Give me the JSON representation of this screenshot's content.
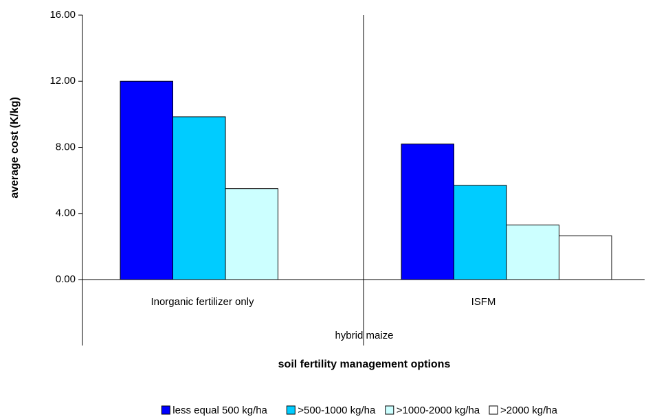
{
  "chart_data": {
    "type": "bar",
    "categories": [
      "Inorganic fertilizer only",
      "ISFM"
    ],
    "group_label": "hybrid maize",
    "x_label": "soil fertility management options",
    "y_label": "average cost (K/kg)",
    "series": [
      {
        "name": "less equal 500 kg/ha",
        "color": "#0000ff",
        "values": [
          12.0,
          8.2
        ]
      },
      {
        "name": ">500-1000 kg/ha",
        "color": "#00ccff",
        "values": [
          9.85,
          5.7
        ]
      },
      {
        "name": ">1000-2000 kg/ha",
        "color": "#ccffff",
        "values": [
          5.5,
          3.3
        ]
      },
      {
        "name": ">2000 kg/ha",
        "color": "#ffffff",
        "values": [
          null,
          2.65
        ]
      }
    ],
    "ylim": [
      0,
      16
    ],
    "yticks": [
      {
        "value": 0,
        "label": "0.00"
      },
      {
        "value": 4,
        "label": "4.00"
      },
      {
        "value": 8,
        "label": "8.00"
      },
      {
        "value": 12,
        "label": "12.00"
      },
      {
        "value": 16,
        "label": "16.00"
      }
    ]
  }
}
